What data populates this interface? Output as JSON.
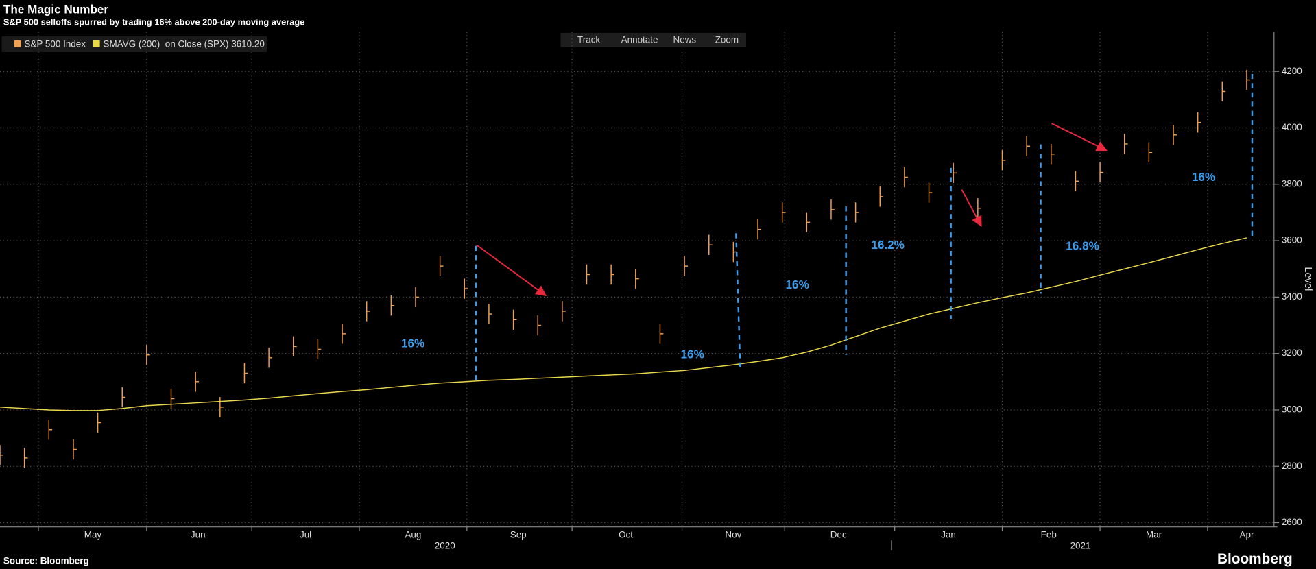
{
  "chart_data": {
    "type": "ohlc",
    "title": "The Magic Number",
    "subtitle": "S&P 500 selloffs spurred by trading 16% above 200-day moving average",
    "source": "Source: Bloomberg",
    "brand": "Bloomberg",
    "ylabel": "Level",
    "toolbar": [
      "Track",
      "Annotate",
      "News",
      "Zoom"
    ],
    "xlim": [
      0,
      51.5
    ],
    "ylim": [
      2585,
      4340
    ],
    "yticks": [
      2600,
      2800,
      3000,
      3200,
      3400,
      3600,
      3800,
      4000,
      4200
    ],
    "xgrid": [
      1.57,
      6.0,
      10.3,
      14.7,
      19.1,
      23.4,
      27.9,
      32.1,
      36.6,
      41.0,
      45.0,
      49.4
    ],
    "xticks": [
      {
        "value": 3.8,
        "label": "May"
      },
      {
        "value": 8.1,
        "label": "Jun"
      },
      {
        "value": 12.5,
        "label": "Jul"
      },
      {
        "value": 16.9,
        "label": "Aug"
      },
      {
        "value": 21.2,
        "label": "Sep"
      },
      {
        "value": 25.6,
        "label": "Oct"
      },
      {
        "value": 30.0,
        "label": "Nov"
      },
      {
        "value": 34.3,
        "label": "Dec"
      },
      {
        "value": 38.8,
        "label": "Jan"
      },
      {
        "value": 42.9,
        "label": "Feb"
      },
      {
        "value": 47.2,
        "label": "Mar"
      },
      {
        "value": 51.0,
        "label": "Apr"
      }
    ],
    "year_labels": [
      {
        "value": 18.2,
        "label": "2020"
      },
      {
        "value": 44.2,
        "label": "2021"
      }
    ],
    "grid": true,
    "series": [
      {
        "name": "S&P 500 Index",
        "color": "#f0a050",
        "style": "bars",
        "x": [
          0,
          1,
          2,
          3,
          4,
          5,
          6,
          7,
          8,
          9,
          10,
          11,
          12,
          13,
          14,
          15,
          16,
          17,
          18,
          19,
          20,
          21,
          22,
          23,
          24,
          25,
          26,
          27,
          28,
          29,
          30,
          31,
          32,
          33,
          34,
          35,
          36,
          37,
          38,
          39,
          40,
          41,
          42,
          43,
          44,
          45,
          46,
          47,
          48,
          49,
          50,
          51
        ],
        "values": [
          2840,
          2830,
          2930,
          2860,
          2955,
          3045,
          3195,
          3040,
          3100,
          3010,
          3130,
          3185,
          3225,
          3215,
          3270,
          3350,
          3370,
          3400,
          3510,
          3430,
          3340,
          3320,
          3300,
          3350,
          3480,
          3480,
          3465,
          3270,
          3510,
          3585,
          3560,
          3640,
          3700,
          3665,
          3710,
          3700,
          3756,
          3825,
          3770,
          3840,
          3715,
          3885,
          3935,
          3907,
          3811,
          3842,
          3943,
          3913,
          3975,
          4019,
          4129,
          4170
        ]
      },
      {
        "name": "SMAVG (200)  on Close (SPX) 3610.20",
        "color": "#e8d84a",
        "style": "line",
        "x": [
          0,
          1,
          2,
          3,
          4,
          5,
          6,
          7,
          8,
          9,
          10,
          11,
          12,
          13,
          14,
          15,
          16,
          17,
          18,
          19,
          20,
          21,
          22,
          23,
          24,
          25,
          26,
          27,
          28,
          29,
          30,
          31,
          32,
          33,
          34,
          35,
          36,
          37,
          38,
          39,
          40,
          41,
          42,
          43,
          44,
          45,
          46,
          47,
          48,
          49,
          50,
          51
        ],
        "values": [
          3010,
          3005,
          3000,
          2998,
          2998,
          3005,
          3015,
          3020,
          3025,
          3030,
          3035,
          3042,
          3050,
          3058,
          3065,
          3072,
          3080,
          3088,
          3095,
          3100,
          3105,
          3108,
          3112,
          3116,
          3120,
          3124,
          3128,
          3134,
          3140,
          3150,
          3160,
          3172,
          3185,
          3205,
          3230,
          3260,
          3290,
          3315,
          3340,
          3360,
          3380,
          3398,
          3415,
          3435,
          3455,
          3478,
          3500,
          3522,
          3545,
          3568,
          3590,
          3610
        ]
      }
    ],
    "annotations": [
      "16%",
      "16%",
      "16%",
      "16.2%",
      "16.8%",
      "16%"
    ]
  }
}
